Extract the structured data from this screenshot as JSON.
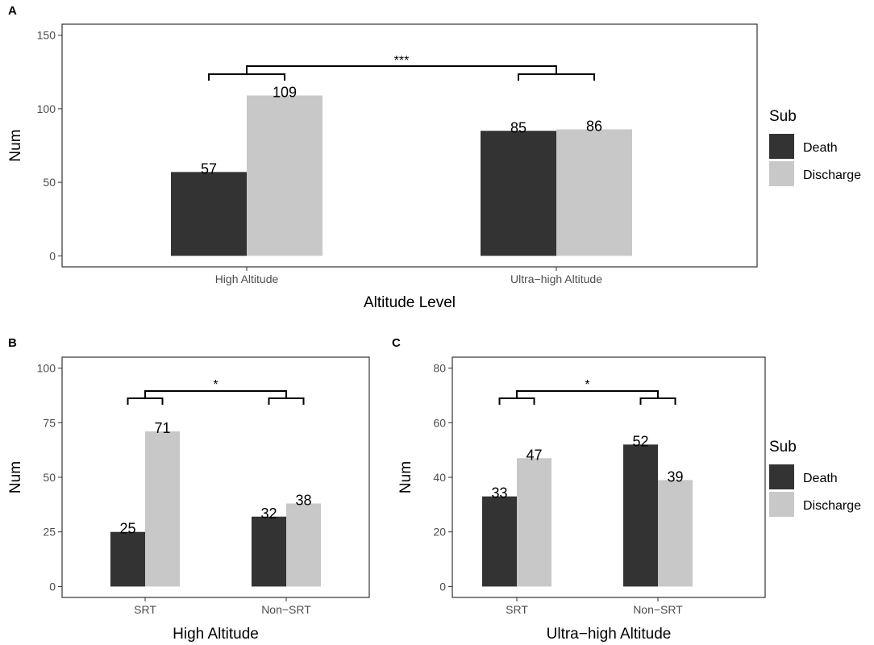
{
  "colors": {
    "death": "#333333",
    "discharge": "#c8c8c8",
    "axis": "#333333",
    "text": "#000000",
    "tick_text": "#4d4d4d"
  },
  "legend": {
    "title": "Sub",
    "items": [
      {
        "label": "Death",
        "color": "#333333"
      },
      {
        "label": "Discharge",
        "color": "#c8c8c8"
      }
    ]
  },
  "chart_data": [
    {
      "panel_label": "A",
      "type": "bar",
      "xlabel": "Altitude Level",
      "ylabel": "Num",
      "ylim": [
        0,
        150
      ],
      "yticks": [
        0,
        50,
        100,
        150
      ],
      "categories": [
        "High Altitude",
        "Ultra−high Altitude"
      ],
      "series": [
        {
          "name": "Death",
          "values": [
            57,
            85
          ]
        },
        {
          "name": "Discharge",
          "values": [
            109,
            86
          ]
        }
      ],
      "significance": "***"
    },
    {
      "panel_label": "B",
      "type": "bar",
      "xlabel": "High Altitude",
      "ylabel": "Num",
      "ylim": [
        0,
        100
      ],
      "yticks": [
        0,
        25,
        50,
        75,
        100
      ],
      "categories": [
        "SRT",
        "Non−SRT"
      ],
      "series": [
        {
          "name": "Death",
          "values": [
            25,
            32
          ]
        },
        {
          "name": "Discharge",
          "values": [
            71,
            38
          ]
        }
      ],
      "significance": "*"
    },
    {
      "panel_label": "C",
      "type": "bar",
      "xlabel": "Ultra−high Altitude",
      "ylabel": "Num",
      "ylim": [
        0,
        80
      ],
      "yticks": [
        0,
        20,
        40,
        60,
        80
      ],
      "categories": [
        "SRT",
        "Non−SRT"
      ],
      "series": [
        {
          "name": "Death",
          "values": [
            33,
            52
          ]
        },
        {
          "name": "Discharge",
          "values": [
            47,
            39
          ]
        }
      ],
      "significance": "*"
    }
  ]
}
